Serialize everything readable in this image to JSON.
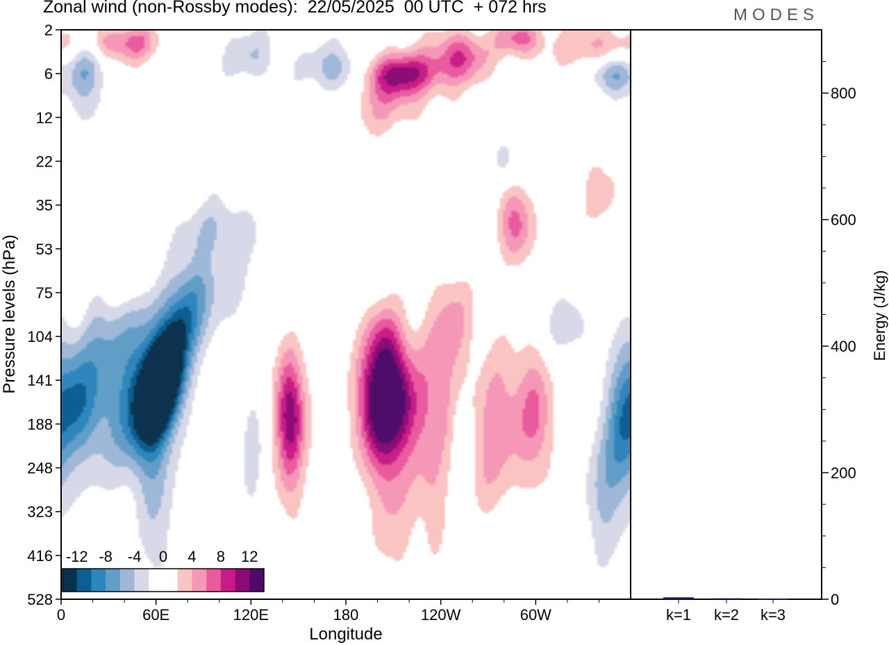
{
  "header": {
    "title": "Zonal wind (non-Rossby modes):  22/05/2025  00 UTC  + 072 hrs",
    "brand": "MODES"
  },
  "chart_data": [
    {
      "type": "heatmap",
      "title": "Zonal wind (non-Rossby modes):  22/05/2025  00 UTC  + 072 hrs",
      "xlabel": "Longitude",
      "ylabel": "Pressure levels (hPa)",
      "x_ticks": [
        "0",
        "60E",
        "120E",
        "180",
        "120W",
        "60W"
      ],
      "x_tick_degrees": [
        0,
        60,
        120,
        180,
        240,
        300
      ],
      "xlim": [
        0,
        360
      ],
      "y_ticks": [
        "2",
        "6",
        "12",
        "22",
        "35",
        "53",
        "75",
        "104",
        "141",
        "188",
        "248",
        "323",
        "416",
        "528"
      ],
      "colorbar": {
        "labels": [
          "-12",
          "-8",
          "-4",
          "0",
          "4",
          "8",
          "12"
        ],
        "levels": [
          -14,
          -12,
          -10,
          -8,
          -6,
          -4,
          -2,
          0,
          2,
          4,
          6,
          8,
          10,
          12,
          14
        ],
        "colors": [
          "#08304f",
          "#0c5f91",
          "#2d86bd",
          "#609ec8",
          "#9fb8d8",
          "#d7d9e9",
          "#ffffff",
          "#ffffff",
          "#f9c4c2",
          "#f598b8",
          "#ea5a9e",
          "#c81a88",
          "#8c0a76",
          "#50086b"
        ]
      },
      "features": [
        {
          "lon": 63,
          "level_index": 8.2,
          "value": -14,
          "note": "strong easterly core near 60E"
        },
        {
          "lon": 8,
          "level_index": 8.5,
          "value": -7
        },
        {
          "lon": 145,
          "level_index": 8.6,
          "value": 8
        },
        {
          "lon": 198,
          "level_index": 8.6,
          "value": 9
        },
        {
          "lon": 215,
          "level_index": 8.6,
          "value": 8
        },
        {
          "lon": 300,
          "level_index": 8.8,
          "value": 6
        },
        {
          "lon": 215,
          "level_index": 1.0,
          "value": 10
        },
        {
          "lon": 170,
          "level_index": 1.0,
          "value": -6
        },
        {
          "lon": 350,
          "level_index": 1.0,
          "value": -7
        },
        {
          "lon": 287,
          "level_index": 4.6,
          "value": 5
        },
        {
          "lon": 355,
          "level_index": 9.2,
          "value": -7
        }
      ]
    },
    {
      "type": "bar",
      "xlabel": "",
      "ylabel": "Energy (J/kg)",
      "categories": [
        "k=1",
        "k=2",
        "k=3"
      ],
      "values": [
        3,
        1.5,
        0.8
      ],
      "ylim": [
        0,
        900
      ],
      "y_ticks": [
        0,
        200,
        400,
        600,
        800
      ],
      "bar_color": "#1a1a5e"
    }
  ]
}
